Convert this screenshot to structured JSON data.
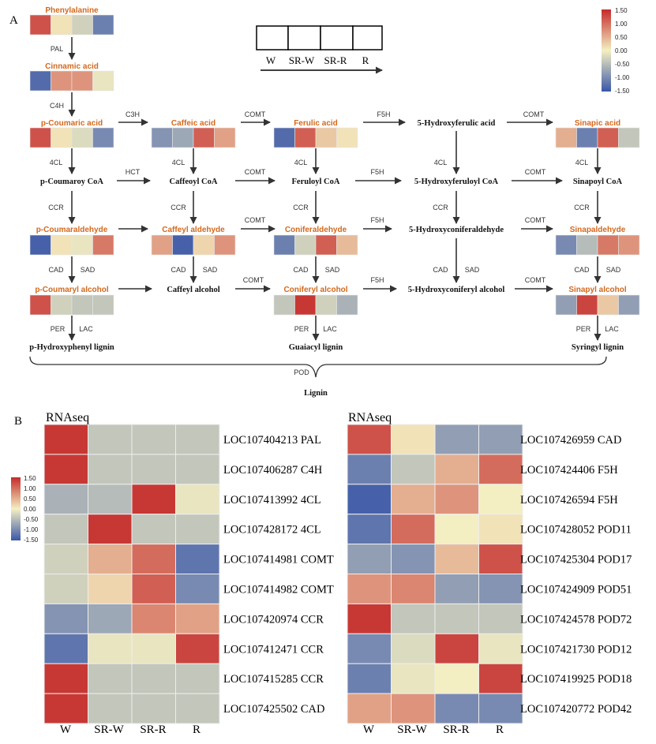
{
  "panel_a": {
    "label": "A",
    "key": {
      "columns": [
        "W",
        "SR-W",
        "SR-R",
        "R"
      ]
    },
    "legend": {
      "ticks": [
        "1.50",
        "1.00",
        "0.50",
        "0.00",
        "-0.50",
        "-1.00",
        "-1.50"
      ]
    },
    "metabolites": [
      {
        "id": "phenylalanine",
        "label": "Phenylalanine",
        "values": [
          1.2,
          0.1,
          -0.3,
          -1.1
        ]
      },
      {
        "id": "cinnamic-acid",
        "label": "Cinnamic acid",
        "values": [
          -1.3,
          0.7,
          0.7,
          -0.1
        ]
      },
      {
        "id": "p-coumaric-acid",
        "label": "p-Coumaric acid",
        "values": [
          1.2,
          0.1,
          -0.2,
          -1.0
        ]
      },
      {
        "id": "caffeic-acid",
        "label": "Caffeic acid",
        "values": [
          -0.9,
          -0.7,
          1.1,
          0.6
        ]
      },
      {
        "id": "ferulic-acid",
        "label": "Ferulic acid",
        "values": [
          -1.3,
          1.1,
          0.3,
          0.1
        ]
      },
      {
        "id": "5-hydroxyferulic-acid",
        "label": "5-Hydroxyferulic acid",
        "values": null
      },
      {
        "id": "sinapic-acid",
        "label": "Sinapic acid",
        "values": [
          0.5,
          -1.1,
          1.1,
          -0.4
        ]
      },
      {
        "id": "p-coumaroy-coa",
        "label": "p-Coumaroy CoA",
        "values": null
      },
      {
        "id": "caffeoyl-coa",
        "label": "Caffeoyl CoA",
        "values": null
      },
      {
        "id": "feruloyl-coa",
        "label": "Feruloyl CoA",
        "values": null
      },
      {
        "id": "5-hydroxyferuloyl-coa",
        "label": "5-Hydroxyferuloyl CoA",
        "values": null
      },
      {
        "id": "sinapoyl-coa",
        "label": "Sinapoyl CoA",
        "values": null
      },
      {
        "id": "p-coumaraldehyde",
        "label": "p-Coumaraldehyde",
        "values": [
          -1.4,
          0.1,
          -0.1,
          0.9
        ]
      },
      {
        "id": "caffeyl-aldehyde",
        "label": "Caffeyl aldehyde",
        "values": [
          0.6,
          -1.4,
          0.2,
          0.7
        ]
      },
      {
        "id": "coniferaldehyde",
        "label": "Coniferaldehyde",
        "values": [
          -1.1,
          -0.3,
          1.1,
          0.4
        ]
      },
      {
        "id": "5-hydroxyconiferaldehyde",
        "label": "5-Hydroxyconiferaldehyde",
        "values": null
      },
      {
        "id": "sinapaldehyde",
        "label": "Sinapaldehyde",
        "values": [
          -1.0,
          -0.5,
          0.9,
          0.7
        ]
      },
      {
        "id": "p-coumaryl-alcohol",
        "label": "p-Coumaryl alcohol",
        "values": [
          1.2,
          -0.3,
          -0.4,
          -0.4
        ]
      },
      {
        "id": "caffeyl-alcohol",
        "label": "Caffeyl alcohol",
        "values": null
      },
      {
        "id": "coniferyl-alcohol",
        "label": "Coniferyl alcohol",
        "values": [
          -0.4,
          1.4,
          -0.3,
          -0.6
        ]
      },
      {
        "id": "5-hydroxyconiferyl-alcohol",
        "label": "5-Hydroxyconiferyl alcohol",
        "values": null
      },
      {
        "id": "sinapyl-alcohol",
        "label": "Sinapyl alcohol",
        "values": [
          -0.8,
          1.3,
          0.3,
          -0.8
        ]
      },
      {
        "id": "p-hydroxyphenyl-lignin",
        "label": "p-Hydroxyphenyl lignin",
        "values": null
      },
      {
        "id": "guaiacyl-lignin",
        "label": "Guaiacyl lignin",
        "values": null
      },
      {
        "id": "syringyl-lignin",
        "label": "Syringyl lignin",
        "values": null
      },
      {
        "id": "lignin",
        "label": "Lignin",
        "values": null
      }
    ],
    "enzymes": [
      {
        "id": "pal",
        "label": "PAL"
      },
      {
        "id": "c4h",
        "label": "C4H"
      },
      {
        "id": "c3h",
        "label": "C3H"
      },
      {
        "id": "comt-1",
        "label": "COMT"
      },
      {
        "id": "f5h-1",
        "label": "F5H"
      },
      {
        "id": "comt-2",
        "label": "COMT"
      },
      {
        "id": "4cl-1",
        "label": "4CL"
      },
      {
        "id": "4cl-2",
        "label": "4CL"
      },
      {
        "id": "4cl-3",
        "label": "4CL"
      },
      {
        "id": "4cl-4",
        "label": "4CL"
      },
      {
        "id": "4cl-5",
        "label": "4CL"
      },
      {
        "id": "hct",
        "label": "HCT"
      },
      {
        "id": "comt-3",
        "label": "COMT"
      },
      {
        "id": "f5h-2",
        "label": "F5H"
      },
      {
        "id": "comt-4",
        "label": "COMT"
      },
      {
        "id": "ccr-1",
        "label": "CCR"
      },
      {
        "id": "ccr-2",
        "label": "CCR"
      },
      {
        "id": "ccr-3",
        "label": "CCR"
      },
      {
        "id": "ccr-4",
        "label": "CCR"
      },
      {
        "id": "ccr-5",
        "label": "CCR"
      },
      {
        "id": "comt-5",
        "label": "COMT"
      },
      {
        "id": "f5h-3",
        "label": "F5H"
      },
      {
        "id": "comt-6",
        "label": "COMT"
      },
      {
        "id": "cad-1",
        "label": "CAD"
      },
      {
        "id": "sad-1",
        "label": "SAD"
      },
      {
        "id": "cad-2",
        "label": "CAD"
      },
      {
        "id": "sad-2",
        "label": "SAD"
      },
      {
        "id": "cad-3",
        "label": "CAD"
      },
      {
        "id": "sad-3",
        "label": "SAD"
      },
      {
        "id": "cad-4",
        "label": "CAD"
      },
      {
        "id": "sad-4",
        "label": "SAD"
      },
      {
        "id": "cad-5",
        "label": "CAD"
      },
      {
        "id": "sad-5",
        "label": "SAD"
      },
      {
        "id": "comt-7",
        "label": "COMT"
      },
      {
        "id": "f5h-4",
        "label": "F5H"
      },
      {
        "id": "comt-8",
        "label": "COMT"
      },
      {
        "id": "per-1",
        "label": "PER"
      },
      {
        "id": "lac-1",
        "label": "LAC"
      },
      {
        "id": "per-2",
        "label": "PER"
      },
      {
        "id": "lac-2",
        "label": "LAC"
      },
      {
        "id": "per-3",
        "label": "PER"
      },
      {
        "id": "lac-3",
        "label": "LAC"
      },
      {
        "id": "pod",
        "label": "POD"
      }
    ]
  },
  "panel_b": {
    "label": "B",
    "legend": {
      "ticks": [
        "1.50",
        "1.00",
        "0.50",
        "0.00",
        "-0.50",
        "-1.00",
        "-1.50"
      ]
    },
    "heatmaps": [
      {
        "title": "RNAseq",
        "columns": [
          "W",
          "SR-W",
          "SR-R",
          "R"
        ],
        "rows": [
          {
            "gene": "LOC107404213 PAL",
            "values": [
              1.4,
              -0.4,
              -0.4,
              -0.4
            ]
          },
          {
            "gene": "LOC107406287 C4H",
            "values": [
              1.4,
              -0.4,
              -0.4,
              -0.4
            ]
          },
          {
            "gene": "LOC107413992 4CL",
            "values": [
              -0.6,
              -0.5,
              1.4,
              -0.1
            ]
          },
          {
            "gene": "LOC107428172 4CL",
            "values": [
              -0.4,
              1.4,
              -0.4,
              -0.4
            ]
          },
          {
            "gene": "LOC107414981 COMT",
            "values": [
              -0.3,
              0.5,
              1.0,
              -1.2
            ]
          },
          {
            "gene": "LOC107414982 COMT",
            "values": [
              -0.3,
              0.2,
              1.1,
              -1.0
            ]
          },
          {
            "gene": "LOC107420974 CCR",
            "values": [
              -0.9,
              -0.7,
              0.8,
              0.6
            ]
          },
          {
            "gene": "LOC107412471 CCR",
            "values": [
              -1.2,
              -0.1,
              -0.1,
              1.3
            ]
          },
          {
            "gene": "LOC107415285 CCR",
            "values": [
              1.4,
              -0.4,
              -0.4,
              -0.4
            ]
          },
          {
            "gene": "LOC107425502 CAD",
            "values": [
              1.4,
              -0.4,
              -0.4,
              -0.4
            ]
          }
        ]
      },
      {
        "title": "RNAseq",
        "columns": [
          "W",
          "SR-W",
          "SR-R",
          "R"
        ],
        "rows": [
          {
            "gene": "LOC107426959 CAD",
            "values": [
              1.2,
              0.1,
              -0.8,
              -0.8
            ]
          },
          {
            "gene": "LOC107424406 F5H",
            "values": [
              -1.1,
              -0.4,
              0.5,
              1.0
            ]
          },
          {
            "gene": "LOC107426594 F5H",
            "values": [
              -1.4,
              0.5,
              0.7,
              0.0
            ]
          },
          {
            "gene": "LOC107428052 POD11",
            "values": [
              -1.2,
              1.0,
              0.0,
              0.1
            ]
          },
          {
            "gene": "LOC107425304 POD17",
            "values": [
              -0.8,
              -0.9,
              0.4,
              1.2
            ]
          },
          {
            "gene": "LOC107424909 POD51",
            "values": [
              0.7,
              0.8,
              -0.8,
              -0.9
            ]
          },
          {
            "gene": "LOC107424578 POD72",
            "values": [
              1.4,
              -0.4,
              -0.4,
              -0.4
            ]
          },
          {
            "gene": "LOC107421730 POD12",
            "values": [
              -1.0,
              -0.2,
              1.3,
              -0.1
            ]
          },
          {
            "gene": "LOC107419925 POD18",
            "values": [
              -1.1,
              -0.1,
              0.0,
              1.3
            ]
          },
          {
            "gene": "LOC107420772 POD42",
            "values": [
              0.6,
              0.7,
              -1.0,
              -1.0
            ]
          }
        ]
      }
    ]
  },
  "chart_data": {
    "type": "heatmap",
    "title": "RNAseq",
    "columns": [
      "W",
      "SR-W",
      "SR-R",
      "R"
    ],
    "color_scale": {
      "min": -1.5,
      "max": 1.5,
      "colors": [
        "#3a57a8",
        "#f4efc2",
        "#c42b2b"
      ]
    }
  }
}
